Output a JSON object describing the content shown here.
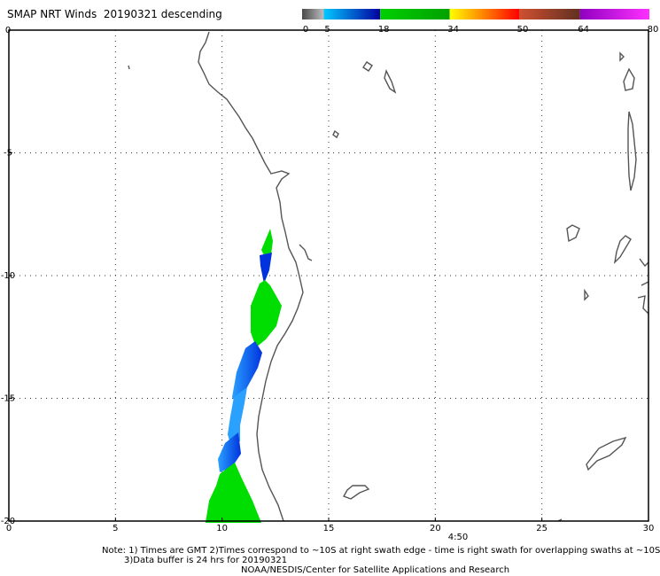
{
  "title": "SMAP NRT Winds  20190321 descending",
  "colorbar": {
    "labels": [
      "0",
      "5",
      "18",
      "34",
      "50",
      "64",
      "80"
    ],
    "segments": [
      {
        "from": 0,
        "to": 5,
        "colors": [
          "#4a4a4a",
          "#bdbdbd"
        ]
      },
      {
        "from": 5,
        "to": 18,
        "colors": [
          "#00c8ff",
          "#0000a0"
        ]
      },
      {
        "from": 18,
        "to": 34,
        "colors": [
          "#00d000",
          "#00a000"
        ]
      },
      {
        "from": 34,
        "to": 50,
        "colors": [
          "#ffff00",
          "#ff8000",
          "#ff0000"
        ]
      },
      {
        "from": 50,
        "to": 64,
        "colors": [
          "#d05030",
          "#603020"
        ]
      },
      {
        "from": 64,
        "to": 80,
        "colors": [
          "#9000c0",
          "#ff30ff"
        ]
      }
    ]
  },
  "map": {
    "lon_range": [
      0,
      30
    ],
    "lat_range": [
      0,
      -20
    ],
    "x_ticks": [
      "0",
      "5",
      "10",
      "15",
      "20",
      "25",
      "30"
    ],
    "y_ticks": [
      "0",
      "-5",
      "-10",
      "-15",
      "-20"
    ],
    "grid": "dotted",
    "time_label": "4:50",
    "colors": {
      "coast": "#555555",
      "green": "#00dd00",
      "blue": "#0033dd",
      "light_blue": "#2aa0ff"
    }
  },
  "notes": {
    "line1": "Note: 1) Times are GMT 2)Times correspond to ~10S at right swath edge - time is right swath for overlapping swaths at ~10S",
    "line2": "3)Data buffer is 24 hrs for 20190321",
    "line3": "NOAA/NESDIS/Center for Satellite Applications and Research"
  }
}
